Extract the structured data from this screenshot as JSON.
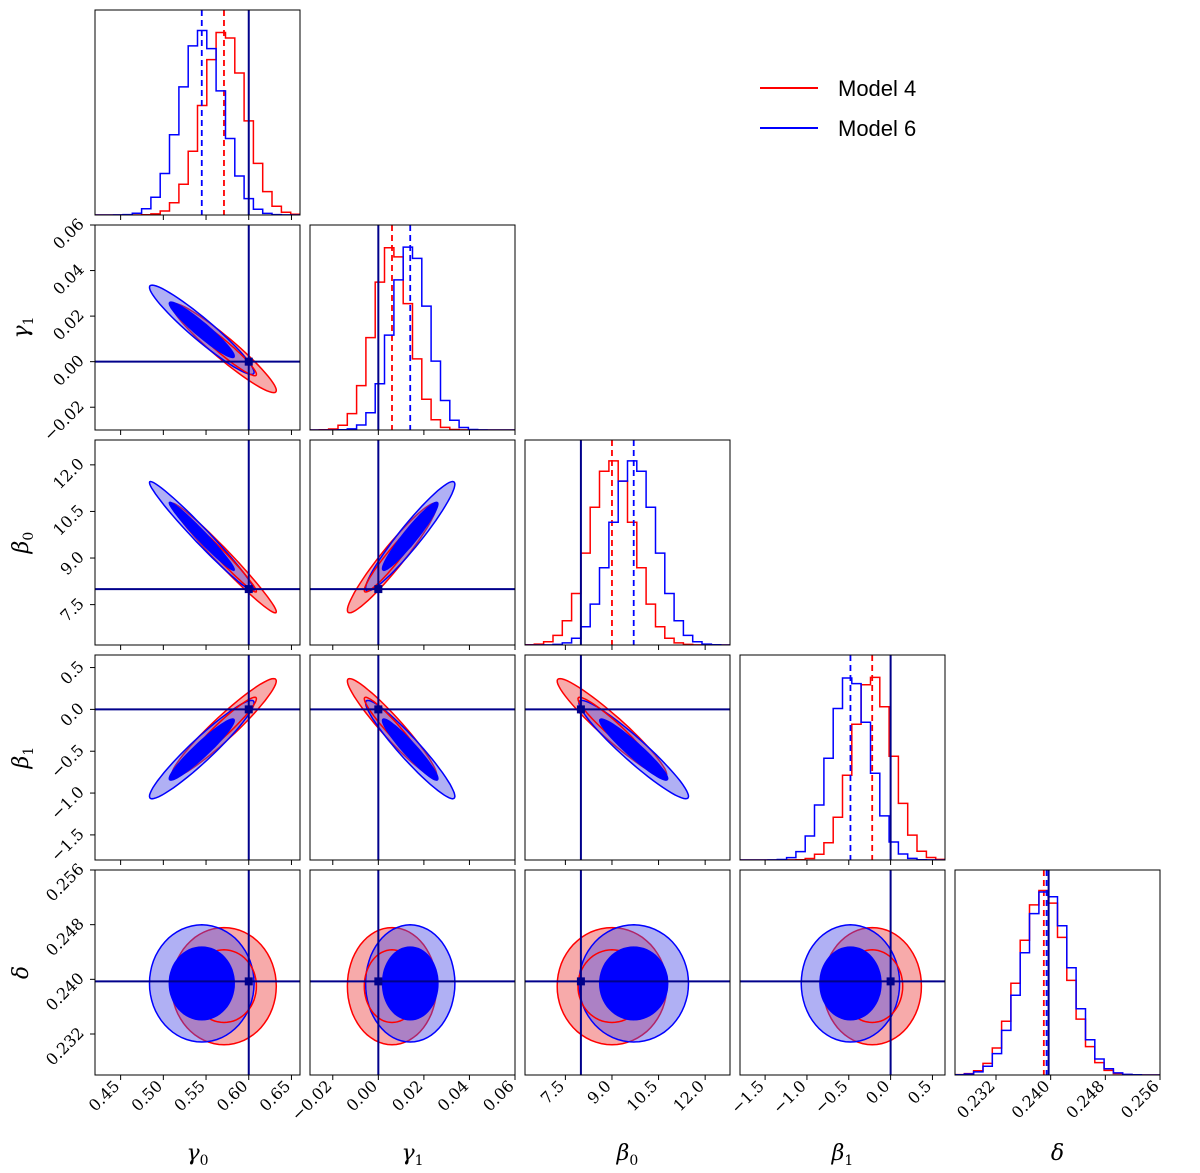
{
  "chart_data": {
    "type": "corner",
    "parameters": [
      {
        "name": "γ",
        "sub": "0",
        "truth": 0.6,
        "range": [
          0.42,
          0.66
        ],
        "ticks": [
          0.45,
          0.5,
          0.55,
          0.6,
          0.65
        ],
        "tick_labels": [
          "0.45",
          "0.50",
          "0.55",
          "0.60",
          "0.65"
        ]
      },
      {
        "name": "γ",
        "sub": "1",
        "truth": 0.0,
        "range": [
          -0.03,
          0.06
        ],
        "ticks": [
          -0.02,
          0.0,
          0.02,
          0.04,
          0.06
        ],
        "tick_labels": [
          "−0.02",
          "0.00",
          "0.02",
          "0.04",
          "0.06"
        ]
      },
      {
        "name": "β",
        "sub": "0",
        "truth": 8.0,
        "range": [
          6.2,
          12.8
        ],
        "ticks": [
          7.5,
          9.0,
          10.5,
          12.0
        ],
        "tick_labels": [
          "7.5",
          "9.0",
          "10.5",
          "12.0"
        ]
      },
      {
        "name": "β",
        "sub": "1",
        "truth": 0.0,
        "range": [
          -1.8,
          0.65
        ],
        "ticks": [
          -1.5,
          -1.0,
          -0.5,
          0.0,
          0.5
        ],
        "tick_labels": [
          "−1.5",
          "−1.0",
          "−0.5",
          "0.0",
          "0.5"
        ]
      },
      {
        "name": "δ",
        "sub": "",
        "truth": 0.2397,
        "range": [
          0.226,
          0.256
        ],
        "ticks": [
          0.232,
          0.24,
          0.248,
          0.256
        ],
        "tick_labels": [
          "0.232",
          "0.240",
          "0.248",
          "0.256"
        ]
      }
    ],
    "series": [
      {
        "name": "Model 4",
        "color": "#ff0000",
        "mean": [
          0.571,
          0.006,
          9.0,
          -0.22,
          0.239
        ],
        "std": [
          0.025,
          0.008,
          0.72,
          0.24,
          0.0035
        ],
        "corr": [
          [
            1,
            -0.95,
            -0.98,
            0.95,
            0.0
          ],
          [
            -0.95,
            1,
            0.95,
            -0.95,
            0.0
          ],
          [
            -0.98,
            0.95,
            1,
            -0.95,
            0.0
          ],
          [
            0.95,
            -0.95,
            -0.95,
            1,
            0.0
          ],
          [
            0.0,
            0.0,
            0.0,
            0.0,
            1
          ]
        ]
      },
      {
        "name": "Model 6",
        "color": "#0000ff",
        "mean": [
          0.545,
          0.014,
          9.7,
          -0.48,
          0.2394
        ],
        "std": [
          0.025,
          0.008,
          0.72,
          0.24,
          0.0035
        ],
        "corr": [
          [
            1,
            -0.95,
            -0.98,
            0.95,
            0.0
          ],
          [
            -0.95,
            1,
            0.95,
            -0.95,
            0.0
          ],
          [
            -0.98,
            0.95,
            1,
            -0.95,
            0.0
          ],
          [
            0.95,
            -0.95,
            -0.95,
            1,
            0.0
          ],
          [
            0.0,
            0.0,
            0.0,
            0.0,
            1
          ]
        ]
      }
    ],
    "truth_color": "#00008b",
    "legend": {
      "position": "top-right",
      "entries": [
        "Model 4",
        "Model 6"
      ]
    }
  }
}
